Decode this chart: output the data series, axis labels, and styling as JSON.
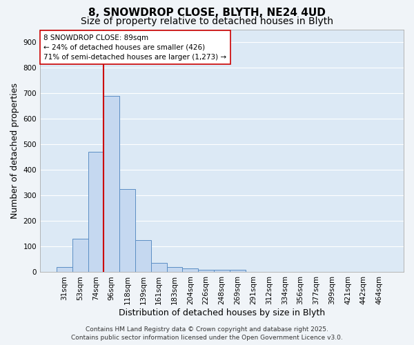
{
  "title_line1": "8, SNOWDROP CLOSE, BLYTH, NE24 4UD",
  "title_line2": "Size of property relative to detached houses in Blyth",
  "xlabel": "Distribution of detached houses by size in Blyth",
  "ylabel": "Number of detached properties",
  "bar_labels": [
    "31sqm",
    "53sqm",
    "74sqm",
    "96sqm",
    "118sqm",
    "139sqm",
    "161sqm",
    "183sqm",
    "204sqm",
    "226sqm",
    "248sqm",
    "269sqm",
    "291sqm",
    "312sqm",
    "334sqm",
    "356sqm",
    "377sqm",
    "399sqm",
    "421sqm",
    "442sqm",
    "464sqm"
  ],
  "bar_values": [
    20,
    130,
    470,
    690,
    325,
    125,
    35,
    20,
    15,
    10,
    10,
    10,
    0,
    0,
    0,
    0,
    0,
    0,
    0,
    0,
    0
  ],
  "bar_color": "#c5d8f0",
  "bar_edge_color": "#5b8ec4",
  "vline_color": "#cc0000",
  "vline_pos": 2.5,
  "annotation_text": "8 SNOWDROP CLOSE: 89sqm\n← 24% of detached houses are smaller (426)\n71% of semi-detached houses are larger (1,273) →",
  "annotation_box_facecolor": "#ffffff",
  "annotation_box_edgecolor": "#cc0000",
  "ylim": [
    0,
    950
  ],
  "yticks": [
    0,
    100,
    200,
    300,
    400,
    500,
    600,
    700,
    800,
    900
  ],
  "plot_bg_color": "#dce9f5",
  "fig_bg_color": "#f0f4f8",
  "grid_color": "#ffffff",
  "footer_line1": "Contains HM Land Registry data © Crown copyright and database right 2025.",
  "footer_line2": "Contains public sector information licensed under the Open Government Licence v3.0.",
  "title1_fontsize": 11,
  "title2_fontsize": 10,
  "axis_label_fontsize": 9,
  "tick_fontsize": 7.5,
  "annotation_fontsize": 7.5,
  "footer_fontsize": 6.5
}
